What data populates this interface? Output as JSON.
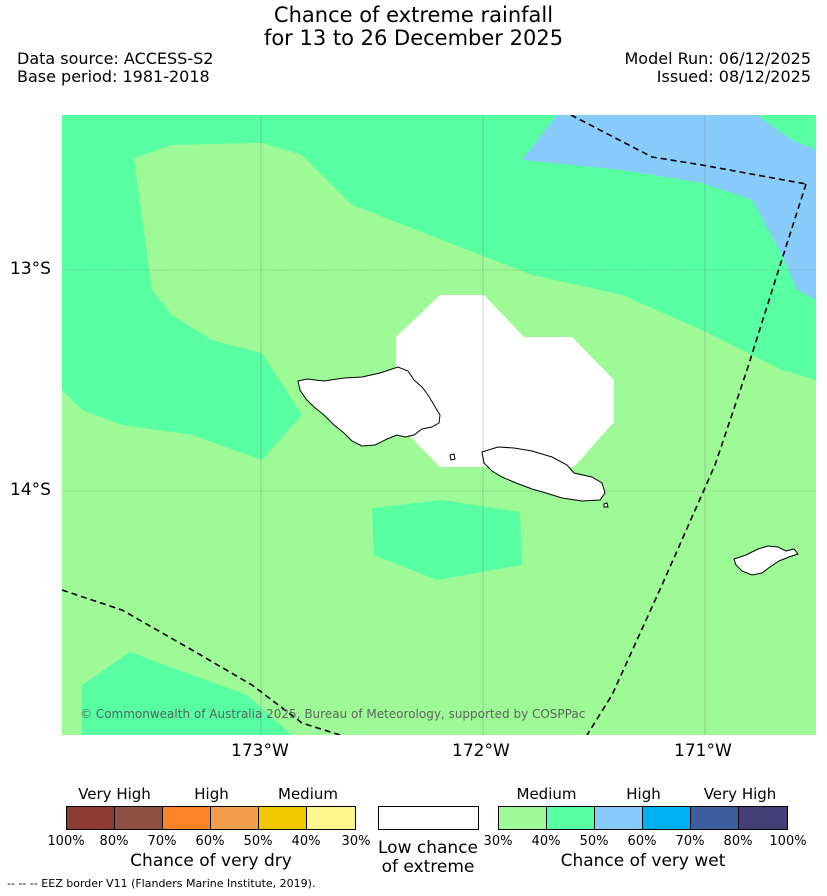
{
  "title_line1": "Chance of extreme rainfall",
  "title_line2": "for 13 to 26 December 2025",
  "data_source": "Data source: ACCESS-S2",
  "base_period": "Base period: 1981-2018",
  "model_run": "Model Run: 06/12/2025",
  "issued": "Issued: 08/12/2025",
  "map": {
    "lat_labels": [
      "13°S",
      "14°S"
    ],
    "lon_labels": [
      "173°W",
      "172°W",
      "171°W"
    ],
    "copyright": "© Commonwealth of Australia 2025, Bureau of Meteorology, supported by COSPPac"
  },
  "legend": {
    "dry": {
      "top_labels": [
        "Very High",
        "High",
        "Medium"
      ],
      "pct_labels": [
        "100%",
        "80%",
        "70%",
        "60%",
        "50%",
        "40%",
        "30%"
      ],
      "caption": "Chance of very dry",
      "colors": [
        "#8c3b33",
        "#8e5040",
        "#fd8328",
        "#f09c4c",
        "#f0c800",
        "#fff58c"
      ]
    },
    "low": {
      "caption_line1": "Low chance",
      "caption_line2": "of extreme",
      "color": "#ffffff"
    },
    "wet": {
      "top_labels": [
        "Medium",
        "High",
        "Very High"
      ],
      "pct_labels": [
        "30%",
        "40%",
        "50%",
        "60%",
        "70%",
        "80%",
        "100%"
      ],
      "caption": "Chance of very wet",
      "colors": [
        "#9efa96",
        "#57fea2",
        "#87cbfa",
        "#00b0f0",
        "#3b5f9e",
        "#433d78"
      ]
    }
  },
  "footnote": "--  --  -- EEZ border V11 (Flanders Marine Institute, 2019)."
}
